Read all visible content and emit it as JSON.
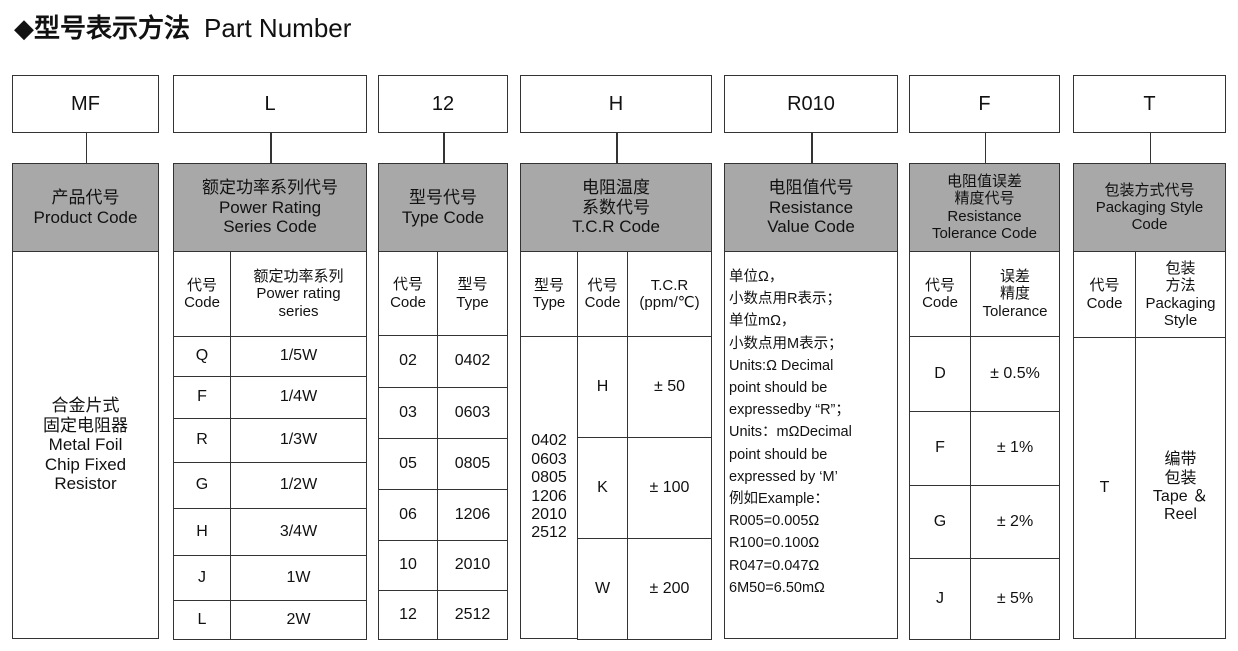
{
  "title": {
    "icon": "diamond-icon",
    "bullet": "◆",
    "zh": "型号表示方法",
    "en": "Part Number"
  },
  "codes": [
    "MF",
    "L",
    "12",
    "H",
    "R010",
    "F",
    "T"
  ],
  "product": {
    "header": "产品代号\nProduct Code",
    "body": "合金片式\n固定电阻器\nMetal Foil\nChip Fixed\nResistor"
  },
  "power": {
    "header": "额定功率系列代号\nPower Rating\nSeries Code",
    "col_code": "代号\nCode",
    "col_series": "额定功率系列\nPower rating\nseries",
    "rows": [
      {
        "code": "Q",
        "value": "1/5W"
      },
      {
        "code": "F",
        "value": "1/4W"
      },
      {
        "code": "R",
        "value": "1/3W"
      },
      {
        "code": "G",
        "value": "1/2W"
      },
      {
        "code": "H",
        "value": "3/4W"
      },
      {
        "code": "J",
        "value": "1W"
      },
      {
        "code": "L",
        "value": "2W"
      }
    ]
  },
  "type": {
    "header": "型号代号\nType Code",
    "col_code": "代号\nCode",
    "col_type": "型号\nType",
    "rows": [
      {
        "code": "02",
        "value": "0402"
      },
      {
        "code": "03",
        "value": "0603"
      },
      {
        "code": "05",
        "value": "0805"
      },
      {
        "code": "06",
        "value": "1206"
      },
      {
        "code": "10",
        "value": "2010"
      },
      {
        "code": "12",
        "value": "2512"
      }
    ]
  },
  "tcr": {
    "header": "电阻温度\n系数代号\nT.C.R Code",
    "col_type": "型号\nType",
    "col_code": "代号\nCode",
    "col_tcr": "T.C.R\n(ppm/℃)",
    "types": "0402\n0603\n0805\n1206\n2010\n2512",
    "rows": [
      {
        "code": "H",
        "value": "± 50"
      },
      {
        "code": "K",
        "value": "± 100"
      },
      {
        "code": "W",
        "value": "± 200"
      }
    ]
  },
  "resistance": {
    "header": "电阻值代号\nResistance\nValue Code",
    "body": "单位Ω，\n小数点用R表示；\n单位mΩ，\n小数点用M表示；\nUnits:Ω Decimal\npoint should be\nexpressedby “R”；\nUnits：mΩDecimal\npoint should be\nexpressed by ‘M’\n例如Example：\nR005=0.005Ω\nR100=0.100Ω\nR047=0.047Ω\n6M50=6.50mΩ"
  },
  "tolerance": {
    "header": "电阻值误差\n精度代号\nResistance\nTolerance Code",
    "col_code": "代号\nCode",
    "col_tol": "误差\n精度\nTolerance",
    "rows": [
      {
        "code": "D",
        "value": "± 0.5%"
      },
      {
        "code": "F",
        "value": "± 1%"
      },
      {
        "code": "G",
        "value": "± 2%"
      },
      {
        "code": "J",
        "value": "± 5%"
      }
    ]
  },
  "packaging": {
    "header": "包装方式代号\nPackaging Style\nCode",
    "col_code": "代号\nCode",
    "col_pack": "包装\n方法\nPackaging\nStyle",
    "code": "T",
    "value": "编带\n包装\nTape ＆\nReel"
  },
  "colors": {
    "header_fill": "#a8a8a8",
    "border": "#333333"
  }
}
